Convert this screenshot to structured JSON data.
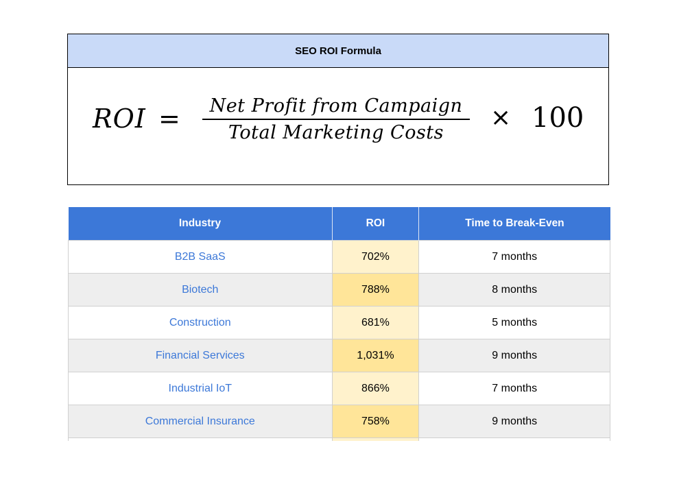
{
  "formula": {
    "title": "SEO ROI Formula",
    "lhs": "ROI",
    "equals": "=",
    "numerator": "Net Profit from Campaign",
    "denominator": "Total Marketing Costs",
    "times": "×",
    "multiplier": "100"
  },
  "table": {
    "headers": {
      "industry": "Industry",
      "roi": "ROI",
      "time": "Time to Break-Even"
    },
    "rows": [
      {
        "industry": "B2B SaaS",
        "roi": "702%",
        "time": "7 months"
      },
      {
        "industry": "Biotech",
        "roi": "788%",
        "time": "8 months"
      },
      {
        "industry": "Construction",
        "roi": "681%",
        "time": "5 months"
      },
      {
        "industry": "Financial Services",
        "roi": "1,031%",
        "time": "9 months"
      },
      {
        "industry": "Industrial IoT",
        "roi": "866%",
        "time": "7 months"
      },
      {
        "industry": "Commercial Insurance",
        "roi": "758%",
        "time": "9 months"
      }
    ]
  },
  "colors": {
    "header_bg": "#3c78d8",
    "formula_header_bg": "#c9daf8",
    "roi_light": "#fff2cc",
    "roi_dark": "#ffe599",
    "link": "#3c78d8",
    "row_alt": "#eeeeee"
  }
}
